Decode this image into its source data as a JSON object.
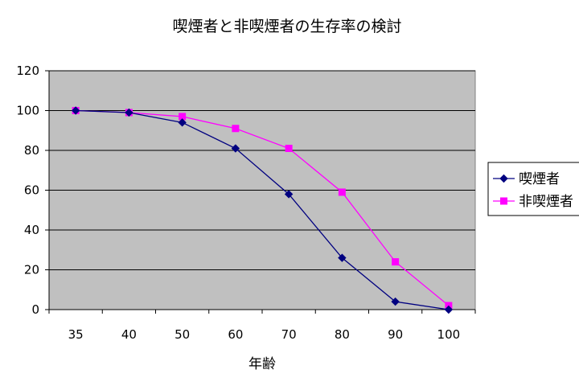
{
  "chart_data": {
    "type": "line",
    "title": "喫煙者と非喫煙者の生存率の検討",
    "xlabel": "年齢",
    "ylabel": "",
    "categories": [
      "35",
      "40",
      "50",
      "60",
      "70",
      "80",
      "90",
      "100"
    ],
    "ylim": [
      0,
      120
    ],
    "yticks": [
      0,
      20,
      40,
      60,
      80,
      100,
      120
    ],
    "grid": true,
    "plot_background": "#c0c0c0",
    "legend_position": "right",
    "series": [
      {
        "name": "喫煙者",
        "color": "#000080",
        "marker": "diamond",
        "values": [
          100,
          99,
          94,
          81,
          58,
          26,
          4,
          0
        ]
      },
      {
        "name": "非喫煙者",
        "color": "#ff00ff",
        "marker": "square",
        "values": [
          100,
          99,
          97,
          91,
          81,
          59,
          24,
          2
        ]
      }
    ]
  }
}
